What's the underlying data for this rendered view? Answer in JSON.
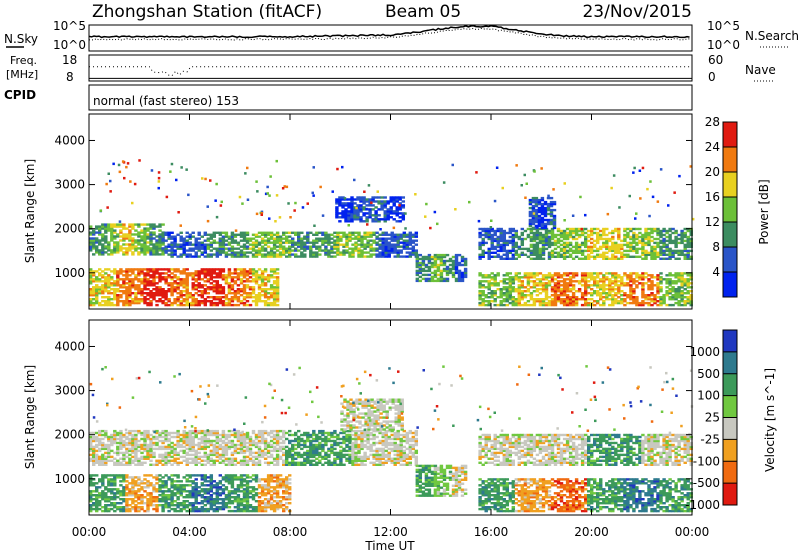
{
  "header": {
    "station": "Zhongshan Station (fitACF)",
    "beam": "Beam 05",
    "date": "23/Nov/2015"
  },
  "noise_panel": {
    "left_label": "N.Sky",
    "right_label": "N.Search",
    "tick_top": "10^5",
    "tick_bottom": "10^0"
  },
  "freq_panel": {
    "left_label_1": "Freq.",
    "left_label_2": "[MHz]",
    "right_label": "Nave",
    "left_tick_top": "18",
    "left_tick_bottom": "8",
    "right_tick_top": "60",
    "right_tick_bottom": "0"
  },
  "cpid_panel": {
    "label": "CPID",
    "text": "normal (fast stereo) 153"
  },
  "chart_data": [
    {
      "type": "heatmap",
      "name": "power",
      "ylabel": "Slant Range [km]",
      "ylim": [
        180,
        4600
      ],
      "yticks": [
        "1000",
        "2000",
        "3000",
        "4000"
      ],
      "colorbar_label": "Power [dB]",
      "colorbar_ticks": [
        "4",
        "8",
        "12",
        "16",
        "20",
        "24",
        "28"
      ],
      "colors": [
        "#0022ee",
        "#2a55c8",
        "#3c8c60",
        "#6cc038",
        "#e8d020",
        "#f07a10",
        "#e01a10"
      ],
      "bands": [
        {
          "t0": 0.0,
          "t1": 3.0,
          "r0": 1400,
          "r1": 2100,
          "cls": [
            2,
            3,
            4,
            3,
            2
          ]
        },
        {
          "t0": 0.0,
          "t1": 7.5,
          "r0": 250,
          "r1": 1100,
          "cls": [
            4,
            5,
            6,
            5,
            6,
            5,
            4
          ]
        },
        {
          "t0": 3.0,
          "t1": 13.0,
          "r0": 1350,
          "r1": 1900,
          "cls": [
            1,
            2,
            3,
            2,
            3,
            1
          ]
        },
        {
          "t0": 9.8,
          "t1": 12.5,
          "r0": 2150,
          "r1": 2700,
          "cls": [
            0,
            1,
            1,
            0
          ]
        },
        {
          "t0": 13.0,
          "t1": 15.0,
          "r0": 800,
          "r1": 1400,
          "cls": [
            2,
            3,
            2,
            1
          ]
        },
        {
          "t0": 15.5,
          "t1": 24.0,
          "r0": 1300,
          "r1": 2000,
          "cls": [
            1,
            2,
            3,
            4,
            3,
            2
          ]
        },
        {
          "t0": 15.5,
          "t1": 24.0,
          "r0": 250,
          "r1": 1000,
          "cls": [
            3,
            4,
            5,
            4,
            5,
            3
          ]
        },
        {
          "t0": 17.5,
          "t1": 18.5,
          "r0": 2000,
          "r1": 2700,
          "cls": [
            1,
            0,
            1
          ]
        }
      ]
    },
    {
      "type": "heatmap",
      "name": "velocity",
      "ylabel": "Slant Range [km]",
      "xlabel": "Time UT",
      "ylim": [
        180,
        4600
      ],
      "yticks": [
        "1000",
        "2000",
        "3000",
        "4000"
      ],
      "xticks": [
        "00:00",
        "04:00",
        "08:00",
        "12:00",
        "16:00",
        "20:00",
        "00:00"
      ],
      "colorbar_label": "Velocity [m s^-1]",
      "colorbar_ticks": [
        "1000",
        "500",
        "100",
        "25",
        "-25",
        "-100",
        "-500",
        "-1000"
      ],
      "colors": [
        "#2038c0",
        "#2e7a8e",
        "#3c9a5a",
        "#70c840",
        "#c8c8c0",
        "#f0a020",
        "#f06a10",
        "#e01a10"
      ],
      "bands": [
        {
          "t0": 0.0,
          "t1": 13.0,
          "r0": 1300,
          "r1": 2100,
          "cls": [
            4,
            4,
            4,
            2,
            4
          ]
        },
        {
          "t0": 0.0,
          "t1": 8.0,
          "r0": 250,
          "r1": 1100,
          "cls": [
            2,
            5,
            2,
            1,
            2,
            5
          ]
        },
        {
          "t0": 10.0,
          "t1": 12.5,
          "r0": 2100,
          "r1": 2800,
          "cls": [
            4,
            4
          ]
        },
        {
          "t0": 13.0,
          "t1": 15.0,
          "r0": 600,
          "r1": 1300,
          "cls": [
            2,
            3,
            4
          ]
        },
        {
          "t0": 15.5,
          "t1": 24.0,
          "r0": 1300,
          "r1": 2000,
          "cls": [
            4,
            4,
            2,
            4
          ]
        },
        {
          "t0": 15.5,
          "t1": 24.0,
          "r0": 250,
          "r1": 1000,
          "cls": [
            2,
            5,
            6,
            2,
            1,
            2
          ]
        }
      ]
    }
  ],
  "noise_series": {
    "t": [
      0,
      2,
      4,
      6,
      8,
      10,
      12,
      13,
      14,
      15,
      16,
      17,
      18,
      19,
      20,
      22,
      24
    ],
    "sky_level": [
      0.55,
      0.55,
      0.55,
      0.55,
      0.55,
      0.58,
      0.62,
      0.72,
      0.85,
      0.95,
      0.95,
      0.8,
      0.65,
      0.58,
      0.55,
      0.55,
      0.55
    ],
    "search_level": [
      0.45,
      0.45,
      0.45,
      0.45,
      0.45,
      0.48,
      0.52,
      0.62,
      0.75,
      0.85,
      0.85,
      0.7,
      0.55,
      0.48,
      0.45,
      0.45,
      0.45
    ]
  },
  "freq_series": {
    "freq_frac": 0.1,
    "nave_frac": 0.55,
    "dip_t0": 2.4,
    "dip_t1": 4.0
  }
}
